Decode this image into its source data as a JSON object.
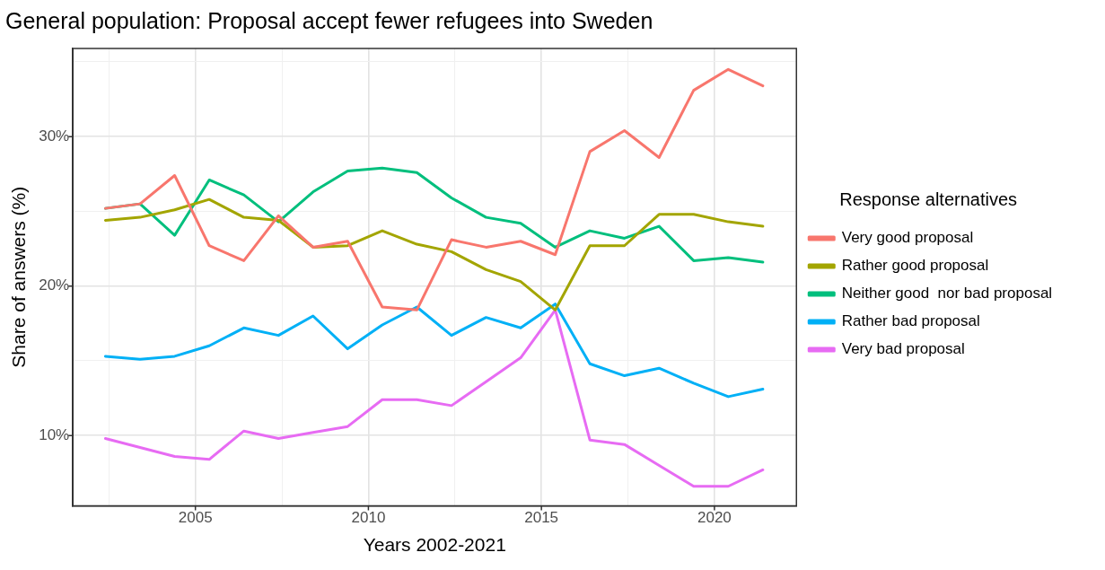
{
  "chart_data": {
    "type": "line",
    "title": "General population: Proposal accept fewer refugees into Sweden",
    "xlabel": "Years 2002-2021",
    "ylabel": "Share of answers (%)",
    "legend_title": "Response alternatives",
    "legend": "right",
    "grid": true,
    "marker": "none",
    "line_style": "solid",
    "x": [
      2002.4,
      2003.4,
      2004.4,
      2005.4,
      2006.4,
      2007.4,
      2008.4,
      2009.4,
      2010.4,
      2011.4,
      2012.4,
      2013.4,
      2014.4,
      2015.4,
      2016.4,
      2017.4,
      2018.4,
      2019.4,
      2020.4,
      2021.4
    ],
    "xlim": [
      2001.46,
      2022.37
    ],
    "xticks": [
      {
        "value": 2002.5,
        "label": null
      },
      2005,
      {
        "value": 2007.5,
        "label": null
      },
      2010,
      {
        "value": 2012.5,
        "label": null
      },
      2015,
      {
        "value": 2017.5,
        "label": null
      },
      2020
    ],
    "ylim": [
      5.3,
      35.9
    ],
    "yticks": [
      {
        "value": 10,
        "label": "10%"
      },
      {
        "value": 15,
        "label": null
      },
      {
        "value": 20,
        "label": "20%"
      },
      {
        "value": 25,
        "label": null
      },
      {
        "value": 30,
        "label": "30%"
      },
      {
        "value": 35,
        "label": null
      }
    ],
    "series": [
      {
        "name": "Very good proposal",
        "color": "#f8766d",
        "values": [
          25.2,
          25.5,
          27.4,
          22.7,
          21.7,
          24.7,
          22.6,
          23.0,
          18.6,
          18.4,
          23.1,
          22.6,
          23.0,
          22.1,
          29.0,
          30.4,
          28.6,
          33.1,
          34.5,
          33.4
        ]
      },
      {
        "name": "Rather good proposal",
        "color": "#a3a500",
        "values": [
          24.4,
          24.6,
          25.1,
          25.8,
          24.6,
          24.4,
          22.6,
          22.7,
          23.7,
          22.8,
          22.3,
          21.1,
          20.3,
          18.4,
          22.7,
          22.7,
          24.8,
          24.8,
          24.3,
          24.0
        ]
      },
      {
        "name": "Neither good  nor bad proposal",
        "color": "#00bf7d",
        "values": [
          25.2,
          25.5,
          23.4,
          27.1,
          26.1,
          24.3,
          26.3,
          27.7,
          27.9,
          27.6,
          25.9,
          24.6,
          24.2,
          22.6,
          23.7,
          23.2,
          24.0,
          21.7,
          21.9,
          21.6
        ]
      },
      {
        "name": "Rather bad proposal",
        "color": "#00b0f6",
        "values": [
          15.3,
          15.1,
          15.3,
          16.0,
          17.2,
          16.7,
          18.0,
          15.8,
          17.4,
          18.6,
          16.7,
          17.9,
          17.2,
          18.8,
          14.8,
          14.0,
          14.5,
          13.5,
          12.6,
          13.1
        ]
      },
      {
        "name": "Very bad proposal",
        "color": "#e76bf3",
        "values": [
          9.8,
          9.2,
          8.6,
          8.4,
          10.3,
          9.8,
          10.2,
          10.6,
          12.4,
          12.4,
          12.0,
          13.6,
          15.2,
          18.4,
          9.7,
          9.4,
          8.0,
          6.6,
          6.6,
          7.7
        ]
      }
    ]
  }
}
